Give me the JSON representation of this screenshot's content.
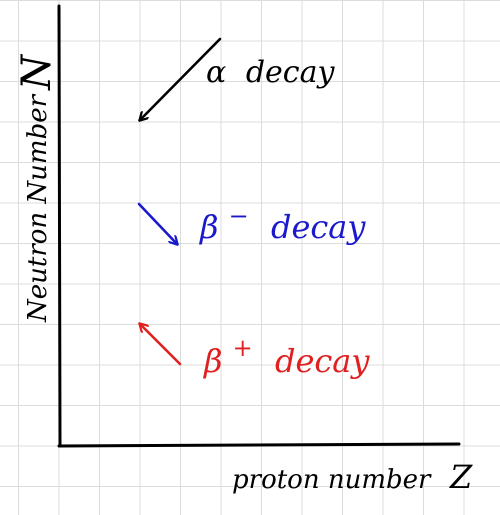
{
  "axes": {
    "y_label": "Neutron Number",
    "y_symbol": "N",
    "x_label": "proton number",
    "x_symbol": "Z"
  },
  "decays": [
    {
      "symbol": "α",
      "superscript": "",
      "label": "decay",
      "color": "#000000",
      "direction": "down-left"
    },
    {
      "symbol": "β",
      "superscript": "−",
      "label": "decay",
      "color": "#1a1acc",
      "direction": "down-right"
    },
    {
      "symbol": "β",
      "superscript": "+",
      "label": "decay",
      "color": "#e02020",
      "direction": "up-left"
    }
  ]
}
